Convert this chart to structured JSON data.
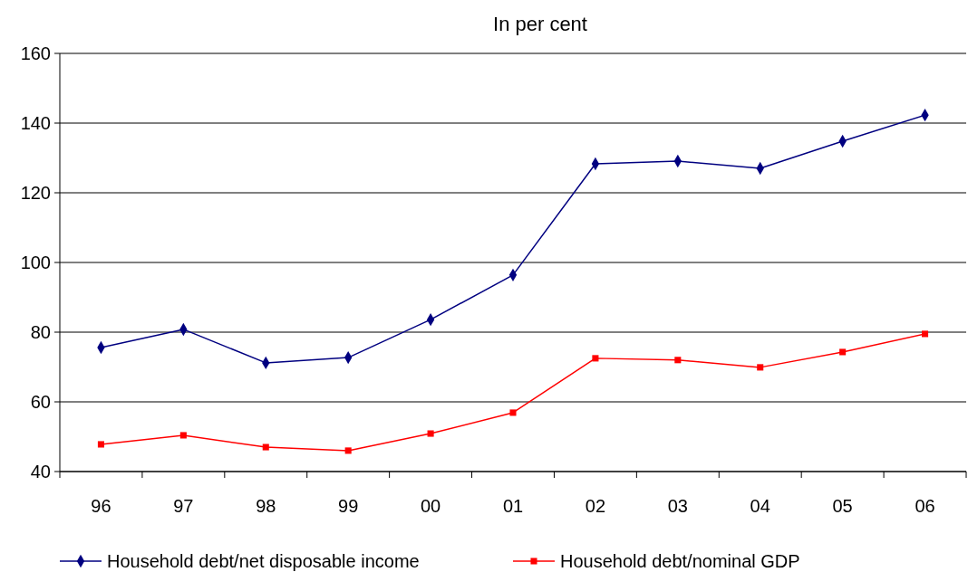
{
  "chart_data": {
    "type": "line",
    "title": "In per cent",
    "categories": [
      "96",
      "97",
      "98",
      "99",
      "00",
      "01",
      "02",
      "03",
      "04",
      "05",
      "06"
    ],
    "series": [
      {
        "name": "Household debt/net disposable income",
        "color": "#000080",
        "marker": "diamond",
        "values": [
          75.6,
          80.8,
          71.2,
          72.7,
          83.6,
          96.4,
          128.3,
          129.1,
          127,
          134.8,
          142.3
        ]
      },
      {
        "name": "Household debt/nominal GDP",
        "color": "#ff0000",
        "marker": "square",
        "values": [
          47.8,
          50.4,
          47,
          46,
          50.9,
          56.9,
          72.5,
          72,
          69.9,
          74.3,
          79.5
        ]
      }
    ],
    "ylim": [
      40,
      160
    ],
    "yticks": [
      40,
      60,
      80,
      100,
      120,
      140,
      160
    ],
    "grid": "y",
    "legend": "bottom",
    "line_style": "solid"
  }
}
